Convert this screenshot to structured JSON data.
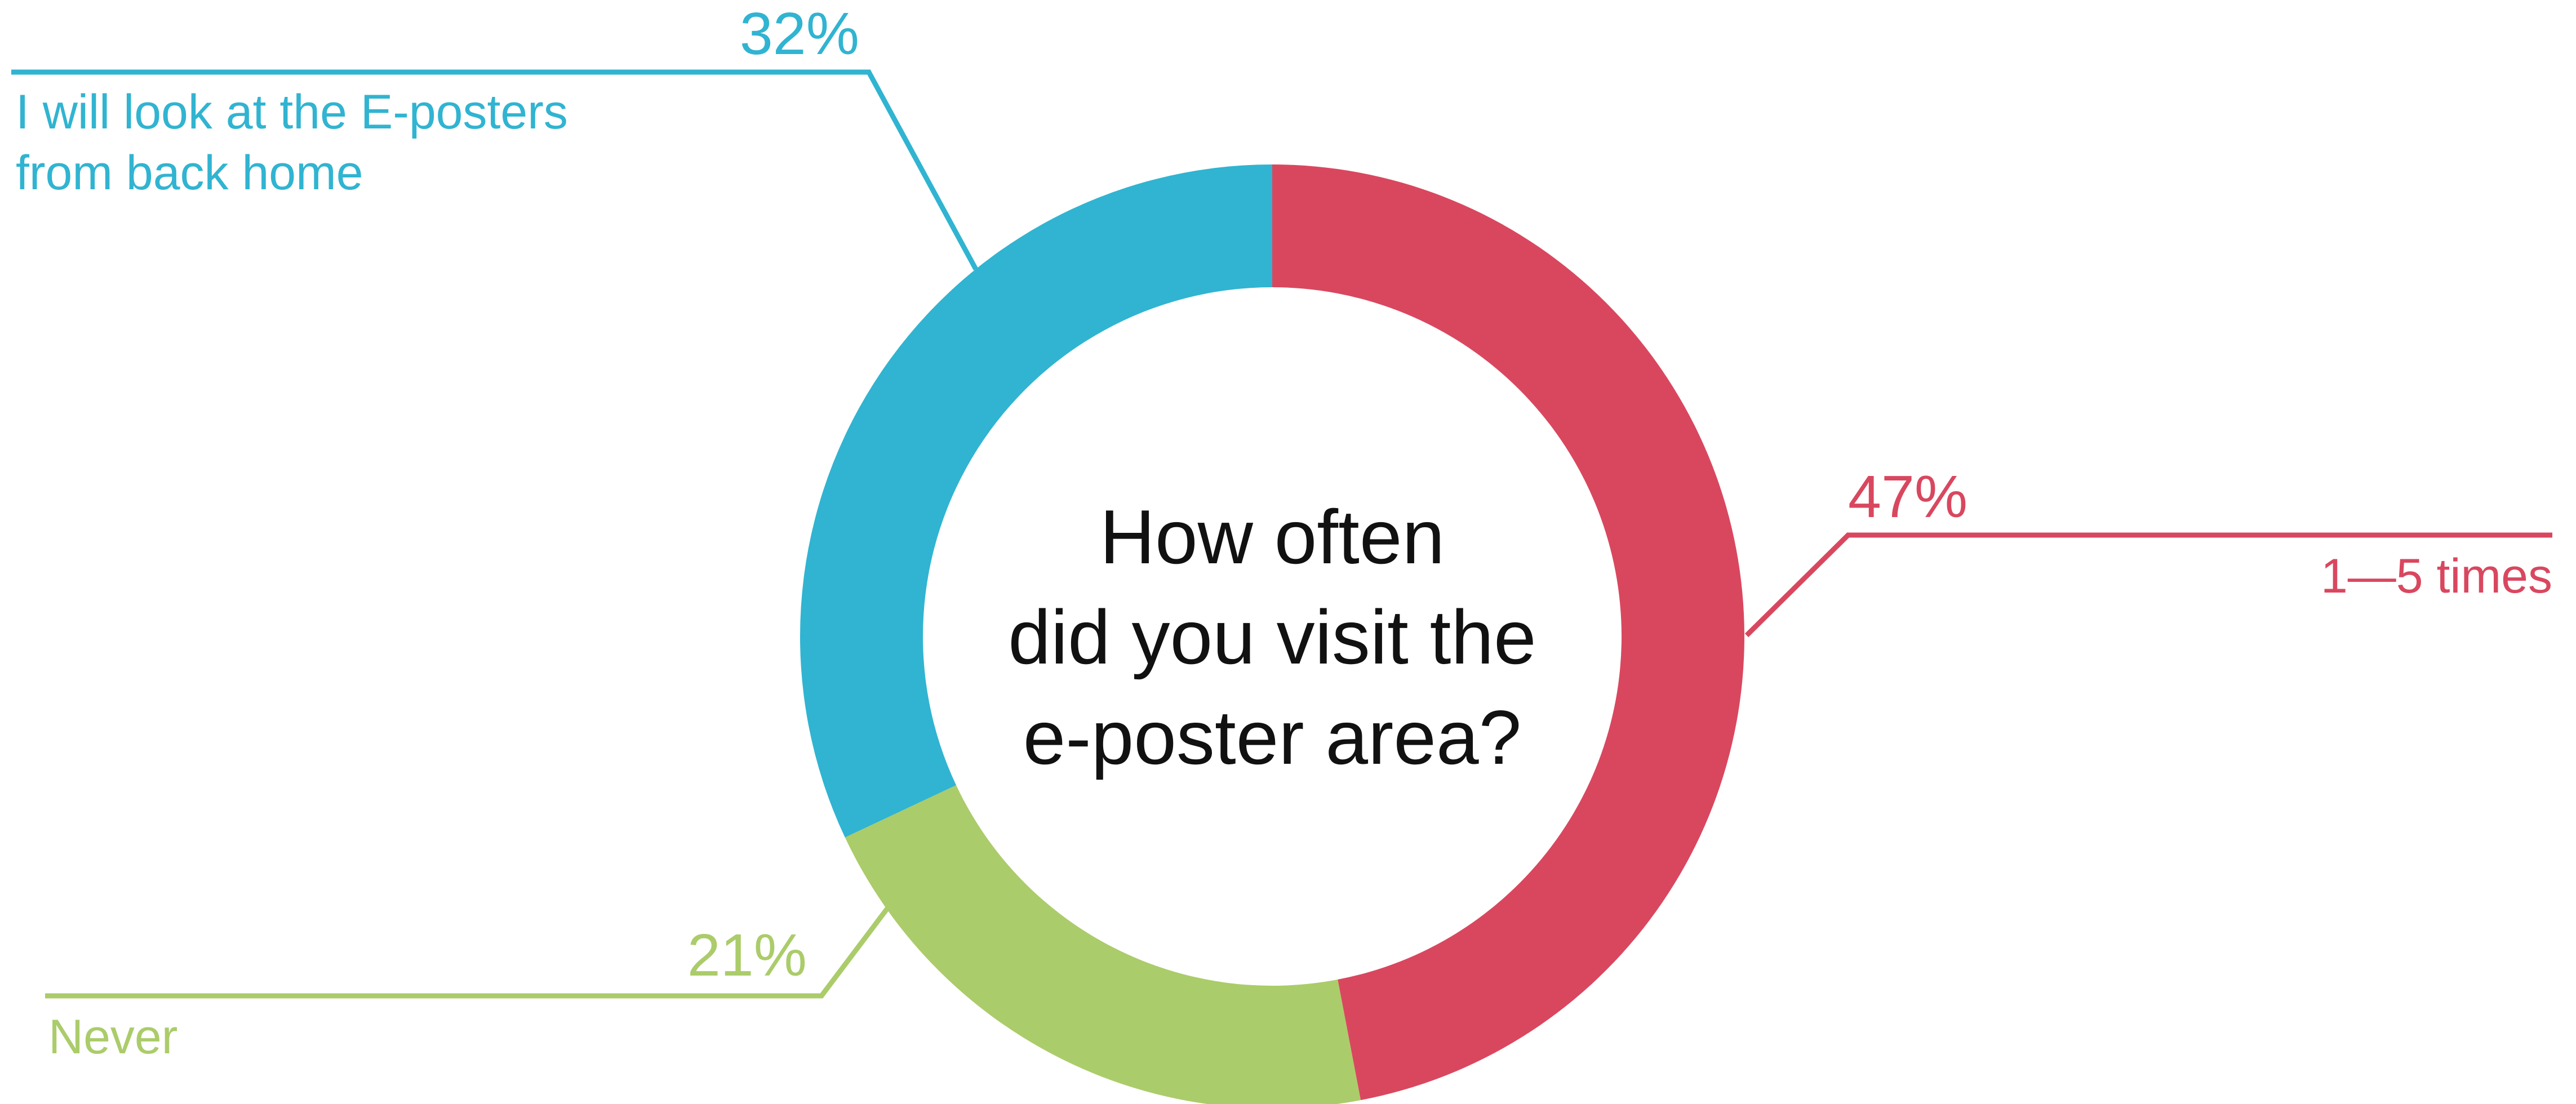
{
  "chart_data": {
    "type": "pie",
    "variant": "donut",
    "title": "How often did you visit the e-poster area?",
    "title_lines": [
      "How often",
      "did you visit the",
      "e-poster area?"
    ],
    "slices": [
      {
        "label": "1—5 times",
        "label_lines": [
          "1—5 times"
        ],
        "value": 47,
        "display": "47%",
        "color": "#d9475f"
      },
      {
        "label": "Never",
        "label_lines": [
          "Never"
        ],
        "value": 21,
        "display": "21%",
        "color": "#abcc6a"
      },
      {
        "label": "I will look at the E-posters from back home",
        "label_lines": [
          "I will look at the E-posters",
          "from back home"
        ],
        "value": 32,
        "display": "32%",
        "color": "#30b4d1"
      }
    ],
    "legend": "none"
  }
}
